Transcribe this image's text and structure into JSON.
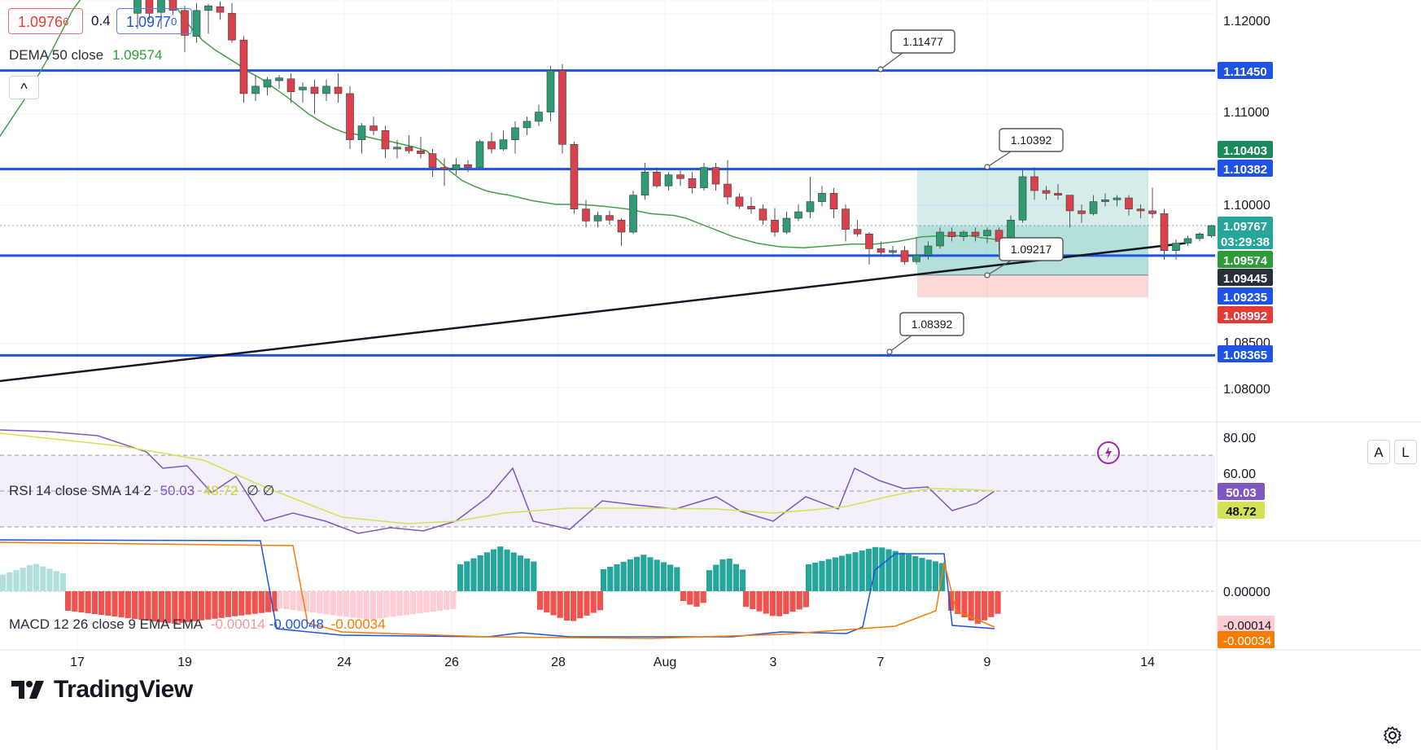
{
  "chart_data": {
    "type": "candlestick",
    "symbol_quote": {
      "bid": "1.0976",
      "bid_sup": "6",
      "spread": "0.4",
      "ask": "1.0977",
      "ask_sup": "0"
    },
    "indicator_legend": {
      "name": "DEMA 50 close",
      "value": "1.09574"
    },
    "price_axis": {
      "ticks": [
        "1.12000",
        "1.11000",
        "1.10000",
        "1.08500",
        "1.08000"
      ]
    },
    "price_tags": [
      {
        "label": "1.11450",
        "color": "#1e53e5"
      },
      {
        "label": "1.10403",
        "color": "#1b8a5a"
      },
      {
        "label": "1.10382",
        "color": "#1e53e5"
      },
      {
        "label": "1.09767",
        "color": "#26a69a"
      },
      {
        "label": "03:29:38",
        "color": "#26a69a"
      },
      {
        "label": "1.09574",
        "color": "#2e9b3a"
      },
      {
        "label": "1.09445",
        "color": "#2a2e39"
      },
      {
        "label": "1.09235",
        "color": "#1e53e5"
      },
      {
        "label": "1.08992",
        "color": "#e53935"
      },
      {
        "label": "1.08365",
        "color": "#1e53e5"
      }
    ],
    "horizontal_levels": [
      1.1145,
      1.10382,
      1.09445,
      1.08365
    ],
    "callouts": [
      "1.11477",
      "1.10392",
      "1.09217",
      "1.08392"
    ],
    "trendline": {
      "from": [
        -0.65,
        1.0808
      ],
      "to": [
        30.4,
        1.0958
      ]
    },
    "position_tool": {
      "entry": 1.09235,
      "target": 1.10403,
      "stop": 1.08992
    },
    "candles_ohlc": [
      [
        1.1207,
        1.1227,
        1.119,
        1.1225
      ],
      [
        1.1224,
        1.1228,
        1.12,
        1.1207
      ],
      [
        1.1208,
        1.1226,
        1.119,
        1.1223
      ],
      [
        1.1223,
        1.1228,
        1.1205,
        1.121
      ],
      [
        1.121,
        1.1215,
        1.1165,
        1.1183
      ],
      [
        1.1182,
        1.1218,
        1.1175,
        1.121
      ],
      [
        1.121,
        1.1217,
        1.1185,
        1.1215
      ],
      [
        1.1214,
        1.122,
        1.12,
        1.1208
      ],
      [
        1.1207,
        1.1218,
        1.1175,
        1.1178
      ],
      [
        1.1178,
        1.1182,
        1.111,
        1.112
      ],
      [
        1.112,
        1.114,
        1.1112,
        1.1128
      ],
      [
        1.1127,
        1.1138,
        1.1118,
        1.1135
      ],
      [
        1.1134,
        1.114,
        1.1125,
        1.1137
      ],
      [
        1.1136,
        1.1142,
        1.111,
        1.1122
      ],
      [
        1.1124,
        1.1132,
        1.111,
        1.1127
      ],
      [
        1.1127,
        1.1135,
        1.1098,
        1.112
      ],
      [
        1.112,
        1.1135,
        1.1112,
        1.1128
      ],
      [
        1.1127,
        1.1142,
        1.111,
        1.112
      ],
      [
        1.112,
        1.1128,
        1.106,
        1.107
      ],
      [
        1.107,
        1.1088,
        1.1055,
        1.1085
      ],
      [
        1.1085,
        1.1095,
        1.1075,
        1.108
      ],
      [
        1.108,
        1.1085,
        1.105,
        1.106
      ],
      [
        1.106,
        1.107,
        1.105,
        1.1062
      ],
      [
        1.1062,
        1.1075,
        1.1055,
        1.1058
      ],
      [
        1.1058,
        1.1073,
        1.105,
        1.1055
      ],
      [
        1.1055,
        1.106,
        1.103,
        1.104
      ],
      [
        1.104,
        1.105,
        1.102,
        1.1038
      ],
      [
        1.1038,
        1.105,
        1.1032,
        1.1043
      ],
      [
        1.1043,
        1.1048,
        1.1035,
        1.104
      ],
      [
        1.104,
        1.107,
        1.1038,
        1.1068
      ],
      [
        1.1068,
        1.1078,
        1.1055,
        1.106
      ],
      [
        1.106,
        1.108,
        1.1058,
        1.107
      ],
      [
        1.107,
        1.109,
        1.1055,
        1.1083
      ],
      [
        1.1083,
        1.1095,
        1.1075,
        1.109
      ],
      [
        1.109,
        1.1108,
        1.1085,
        1.11
      ],
      [
        1.11,
        1.115,
        1.109,
        1.1145
      ],
      [
        1.1145,
        1.1152,
        1.1055,
        1.1065
      ],
      [
        1.1065,
        1.1068,
        1.099,
        1.0995
      ],
      [
        1.0995,
        1.1005,
        1.0975,
        1.0982
      ],
      [
        1.0982,
        1.0992,
        1.0975,
        1.0988
      ],
      [
        1.0988,
        1.0993,
        1.0978,
        1.0983
      ],
      [
        1.0983,
        1.0985,
        1.0955,
        1.097
      ],
      [
        1.097,
        1.1015,
        1.0968,
        1.101
      ],
      [
        1.101,
        1.1045,
        1.1005,
        1.1035
      ],
      [
        1.1035,
        1.104,
        1.1018,
        1.102
      ],
      [
        1.102,
        1.1035,
        1.1015,
        1.1032
      ],
      [
        1.1032,
        1.1038,
        1.102,
        1.1028
      ],
      [
        1.1028,
        1.1035,
        1.1012,
        1.1018
      ],
      [
        1.1018,
        1.1045,
        1.1015,
        1.104
      ],
      [
        1.104,
        1.1045,
        1.1015,
        1.1022
      ],
      [
        1.1022,
        1.1048,
        1.1,
        1.1008
      ],
      [
        1.1008,
        1.1012,
        1.0995,
        1.0998
      ],
      [
        1.0998,
        1.1008,
        1.099,
        1.0995
      ],
      [
        1.0995,
        1.1,
        1.0978,
        1.0983
      ],
      [
        1.0983,
        1.0996,
        1.0965,
        1.097
      ],
      [
        1.097,
        1.0992,
        1.0968,
        1.0985
      ],
      [
        1.0985,
        1.1,
        1.0982,
        1.0992
      ],
      [
        1.0992,
        1.103,
        1.0985,
        1.1003
      ],
      [
        1.1003,
        1.102,
        1.0998,
        1.1012
      ],
      [
        1.1012,
        1.1018,
        1.0985,
        1.0995
      ],
      [
        1.0995,
        1.1,
        1.096,
        1.0973
      ],
      [
        1.0973,
        1.0983,
        1.0965,
        1.0968
      ],
      [
        1.0968,
        1.097,
        1.0935,
        1.0952
      ],
      [
        1.0952,
        1.096,
        1.0945,
        1.0948
      ],
      [
        1.0948,
        1.0955,
        1.0943,
        1.095
      ],
      [
        1.095,
        1.0955,
        1.0935,
        1.0938
      ],
      [
        1.0938,
        1.0965,
        1.0935,
        1.0945
      ],
      [
        1.0945,
        1.096,
        1.094,
        1.0955
      ],
      [
        1.0955,
        1.0975,
        1.0952,
        1.097
      ],
      [
        1.097,
        1.0975,
        1.096,
        1.0965
      ],
      [
        1.0965,
        1.0972,
        1.096,
        1.097
      ],
      [
        1.097,
        1.0975,
        1.096,
        1.0966
      ],
      [
        1.0966,
        1.0975,
        1.0958,
        1.0972
      ],
      [
        1.0972,
        1.0975,
        1.095,
        1.096
      ],
      [
        1.096,
        1.0988,
        1.0955,
        1.0983
      ],
      [
        1.0983,
        1.1038,
        1.098,
        1.103
      ],
      [
        1.103,
        1.104,
        1.1005,
        1.1015
      ],
      [
        1.1015,
        1.102,
        1.1005,
        1.1012
      ],
      [
        1.1012,
        1.1022,
        1.1005,
        1.101
      ],
      [
        1.101,
        1.101,
        1.0975,
        1.0993
      ],
      [
        1.0993,
        1.1,
        1.098,
        1.099
      ],
      [
        1.099,
        1.101,
        1.0988,
        1.1003
      ],
      [
        1.1003,
        1.1012,
        1.0998,
        1.1005
      ],
      [
        1.1005,
        1.101,
        1.0998,
        1.1007
      ],
      [
        1.1007,
        1.101,
        1.0988,
        1.0995
      ],
      [
        1.0995,
        1.1,
        1.0985,
        1.0993
      ],
      [
        1.0993,
        1.1018,
        1.0985,
        1.099
      ],
      [
        1.099,
        1.0995,
        1.094,
        1.095
      ],
      [
        1.095,
        1.0962,
        1.094,
        1.0958
      ],
      [
        1.0958,
        1.0966,
        1.0955,
        1.0963
      ],
      [
        1.0963,
        1.097,
        1.096,
        1.0968
      ],
      [
        1.0966,
        1.0978,
        1.0964,
        1.0977
      ]
    ],
    "dema50_line": [
      [
        -0.6,
        1.1065
      ],
      [
        2,
        1.1115
      ],
      [
        4,
        1.116
      ],
      [
        6,
        1.121
      ],
      [
        8,
        1.1245
      ],
      [
        10,
        1.1262
      ],
      [
        12,
        1.1248
      ],
      [
        13,
        1.1238
      ],
      [
        15,
        1.121
      ],
      [
        16,
        1.1192
      ],
      [
        17,
        1.1178
      ],
      [
        18,
        1.1168
      ],
      [
        19,
        1.116
      ],
      [
        20,
        1.1152
      ],
      [
        21,
        1.1143
      ],
      [
        22,
        1.1136
      ],
      [
        23,
        1.1127
      ],
      [
        24,
        1.1118
      ],
      [
        25,
        1.1108
      ],
      [
        26,
        1.1098
      ],
      [
        27,
        1.109
      ],
      [
        28,
        1.1083
      ],
      [
        29,
        1.1078
      ],
      [
        30,
        1.1076
      ],
      [
        31,
        1.1073
      ],
      [
        32,
        1.107
      ],
      [
        33,
        1.1068
      ],
      [
        35,
        1.1062
      ],
      [
        36,
        1.1058
      ],
      [
        37,
        1.1048
      ],
      [
        38,
        1.1036
      ],
      [
        39,
        1.1026
      ],
      [
        40,
        1.102
      ],
      [
        41,
        1.1015
      ],
      [
        42,
        1.1012
      ],
      [
        43,
        1.101
      ],
      [
        45,
        1.1004
      ],
      [
        47,
        1.1
      ],
      [
        49,
        1.1
      ],
      [
        51,
        1.0998
      ],
      [
        53,
        1.0995
      ],
      [
        55,
        1.099
      ],
      [
        57,
        1.0988
      ],
      [
        58,
        1.0985
      ],
      [
        59,
        1.098
      ],
      [
        60,
        1.0975
      ],
      [
        61,
        1.097
      ],
      [
        62,
        1.0965
      ],
      [
        64,
        1.0958
      ],
      [
        66,
        1.0954
      ],
      [
        68,
        1.0953
      ],
      [
        70,
        1.0955
      ],
      [
        72,
        1.0957
      ],
      [
        74,
        1.0957
      ],
      [
        76,
        1.096
      ],
      [
        78,
        1.0965
      ],
      [
        80,
        1.0966
      ],
      [
        82,
        1.0966
      ],
      [
        83,
        1.0964
      ],
      [
        85,
        1.0961
      ],
      [
        86,
        1.096
      ],
      [
        87,
        1.0958
      ],
      [
        88,
        1.0956
      ],
      [
        89,
        1.0957
      ]
    ],
    "rsi": {
      "label": "RSI 14 close SMA 14 2",
      "value": "50.03",
      "sma_value": "48.72",
      "extra": "∅ ∅",
      "axis_ticks": [
        "80.00",
        "60.00"
      ],
      "tags": [
        "50.03",
        "48.72"
      ]
    },
    "macd": {
      "label": "MACD 12 26 close 9 EMA EMA",
      "histogram": "-0.00014",
      "macd": "-0.00048",
      "signal": "-0.00034",
      "axis_ticks": [
        "0.00000"
      ],
      "tags": [
        "-0.00014",
        "-0.00034"
      ]
    },
    "x_axis": {
      "ticks": [
        "17",
        "19",
        "24",
        "26",
        "28",
        "Aug",
        "3",
        "7",
        "9",
        "14"
      ]
    },
    "colors": {
      "up": "#2e9b72",
      "down": "#d9424d",
      "level": "#1e53e5",
      "dema": "#43a047"
    }
  },
  "controls": {
    "auto": "A",
    "log": "L",
    "collapse": "^"
  },
  "branding": {
    "name": "TradingView"
  }
}
